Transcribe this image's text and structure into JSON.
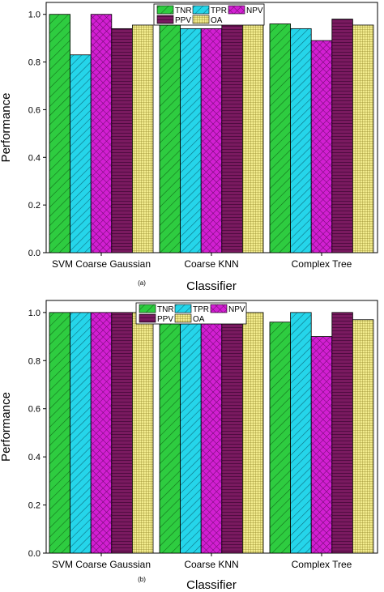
{
  "colors": {
    "TNR": "#2ecc40",
    "TPR": "#25d5ea",
    "NPV": "#d21fd2",
    "PPV": "#7a1a60",
    "OA": "#f3ec8e"
  },
  "chart_data": [
    {
      "type": "bar",
      "panel_label": "(a)",
      "categories": [
        "SVM Coarse Gaussian",
        "Coarse KNN",
        "Complex Tree"
      ],
      "xlabel": "Classifier",
      "ylabel": "Performance",
      "ylim": [
        0.0,
        1.05
      ],
      "yticks": [
        "0.0",
        "0.2",
        "0.4",
        "0.6",
        "0.8",
        "1.0"
      ],
      "legend_position": "top-center",
      "series": [
        {
          "name": "TNR",
          "values": [
            1.0,
            1.0,
            0.96
          ]
        },
        {
          "name": "TPR",
          "values": [
            0.83,
            0.94,
            0.94
          ]
        },
        {
          "name": "NPV",
          "values": [
            1.0,
            0.94,
            0.89
          ]
        },
        {
          "name": "PPV",
          "values": [
            0.94,
            0.98,
            0.98
          ]
        },
        {
          "name": "OA",
          "values": [
            0.955,
            0.97,
            0.955
          ]
        }
      ]
    },
    {
      "type": "bar",
      "panel_label": "(b)",
      "categories": [
        "SVM Coarse Gaussian",
        "Coarse KNN",
        "Complex Tree"
      ],
      "xlabel": "Classifier",
      "ylabel": "Performance",
      "ylim": [
        0.0,
        1.05
      ],
      "yticks": [
        "0.0",
        "0.2",
        "0.4",
        "0.6",
        "0.8",
        "1.0"
      ],
      "legend_position": "top-center",
      "series": [
        {
          "name": "TNR",
          "values": [
            1.0,
            1.0,
            0.96
          ]
        },
        {
          "name": "TPR",
          "values": [
            1.0,
            1.0,
            1.0
          ]
        },
        {
          "name": "NPV",
          "values": [
            1.0,
            1.0,
            0.9
          ]
        },
        {
          "name": "PPV",
          "values": [
            1.0,
            1.0,
            1.0
          ]
        },
        {
          "name": "OA",
          "values": [
            1.0,
            1.0,
            0.97
          ]
        }
      ]
    }
  ]
}
